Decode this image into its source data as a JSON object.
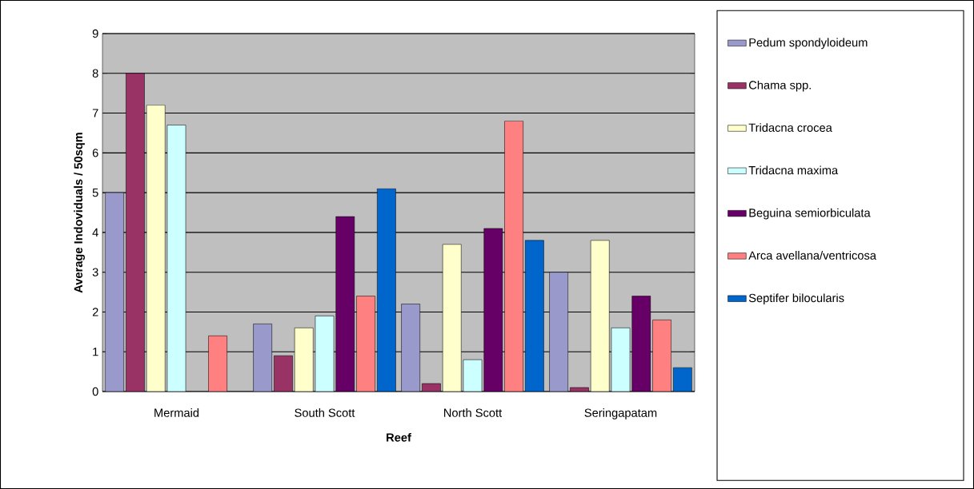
{
  "chart_data": {
    "type": "bar",
    "xlabel": "Reef",
    "ylabel": "Average Indoviduals / 50sqm",
    "categories": [
      "Mermaid",
      "South Scott",
      "North Scott",
      "Seringapatam"
    ],
    "series": [
      {
        "name": "Pedum spondyloideum",
        "color": "#9999cc",
        "values": [
          5.0,
          1.7,
          2.2,
          3.0
        ]
      },
      {
        "name": "Chama spp.",
        "color": "#993366",
        "values": [
          8.0,
          0.9,
          0.2,
          0.1
        ]
      },
      {
        "name": "Tridacna crocea",
        "color": "#ffffcc",
        "values": [
          7.2,
          1.6,
          3.7,
          3.8
        ]
      },
      {
        "name": "Tridacna maxima",
        "color": "#ccffff",
        "values": [
          6.7,
          1.9,
          0.8,
          1.6
        ]
      },
      {
        "name": "Beguina semiorbiculata",
        "color": "#660066",
        "values": [
          null,
          4.4,
          4.1,
          2.4
        ]
      },
      {
        "name": "Arca avellana/ventricosa",
        "color": "#ff8080",
        "values": [
          1.4,
          2.4,
          6.8,
          1.8
        ]
      },
      {
        "name": "Septifer bilocularis",
        "color": "#0066cc",
        "values": [
          null,
          5.1,
          3.8,
          0.6
        ]
      }
    ],
    "ylim": [
      0,
      9
    ],
    "yticks": [
      0,
      1,
      2,
      3,
      4,
      5,
      6,
      7,
      8,
      9
    ],
    "grid": "y",
    "legend": "right"
  }
}
